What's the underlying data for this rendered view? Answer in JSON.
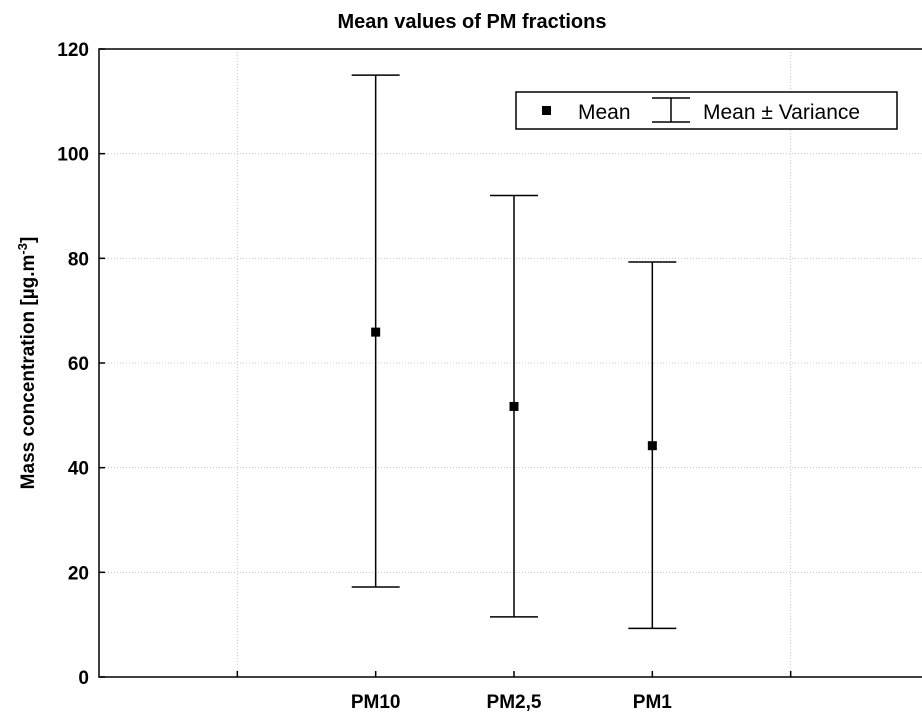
{
  "chart_data": {
    "type": "scatter",
    "title": "Mean values of PM fractions",
    "ylabel": "Mass concentration [µg.m",
    "ylabel_sup": "-3",
    "ylabel_close": "]",
    "xlabel": "",
    "categories": [
      "PM10",
      "PM2,5",
      "PM1"
    ],
    "mean": [
      65.9,
      51.7,
      44.2
    ],
    "upper": [
      115.0,
      92.0,
      79.3
    ],
    "lower": [
      17.2,
      11.5,
      9.3
    ],
    "ylim": [
      0,
      120
    ],
    "yticks": [
      0,
      20,
      40,
      60,
      80,
      100,
      120
    ],
    "grid": true,
    "legend": {
      "placement": "top-right",
      "mean_label": "Mean",
      "range_label": "Mean ± Variance"
    },
    "colors": {
      "marker": "#000000",
      "grid": "#c8c8c8"
    }
  }
}
